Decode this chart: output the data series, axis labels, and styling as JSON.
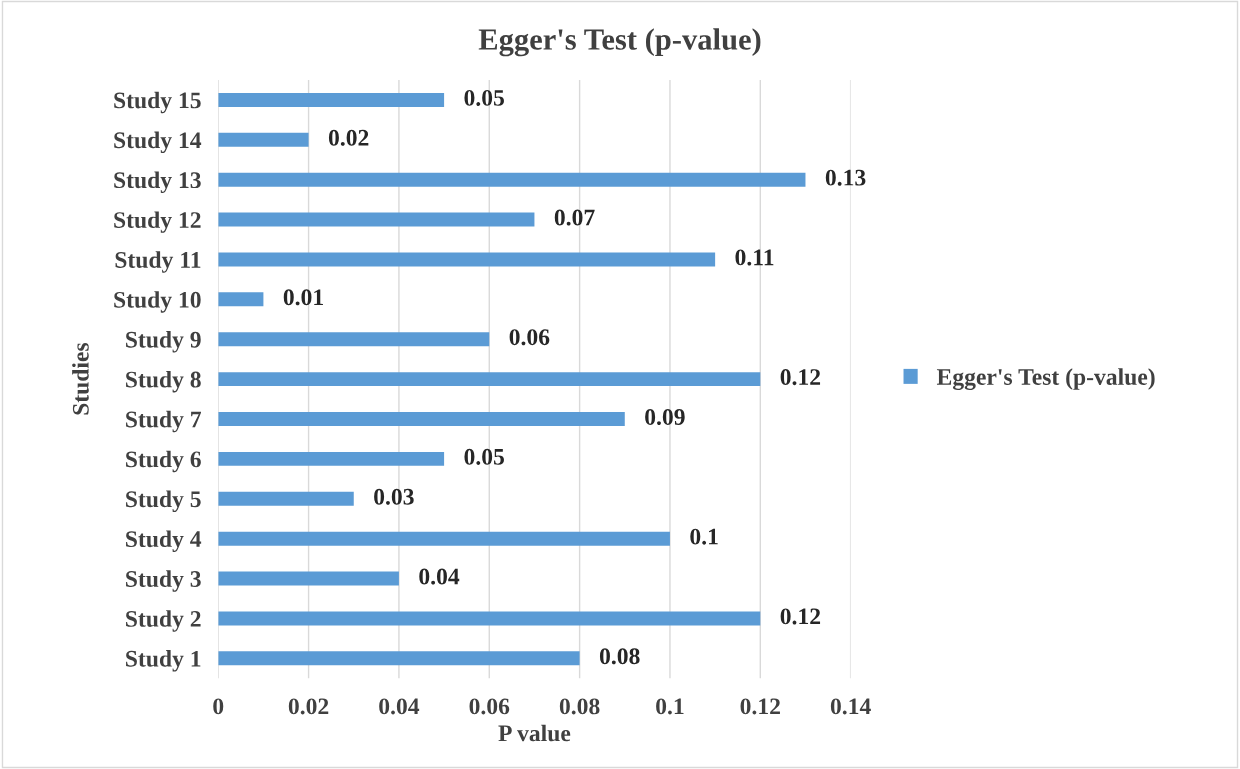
{
  "chart_data": {
    "type": "bar",
    "orientation": "horizontal",
    "title": "Egger's Test (p-value)",
    "xlabel": "P value",
    "ylabel": "Studies",
    "categories": [
      "Study 15",
      "Study 14",
      "Study 13",
      "Study 12",
      "Study 11",
      "Study 10",
      "Study 9",
      "Study 8",
      "Study 7",
      "Study 6",
      "Study 5",
      "Study 4",
      "Study 3",
      "Study 2",
      "Study 1"
    ],
    "series": [
      {
        "name": "Egger's Test (p-value)",
        "color": "#5b9bd5",
        "values": [
          0.05,
          0.02,
          0.13,
          0.07,
          0.11,
          0.01,
          0.06,
          0.12,
          0.09,
          0.05,
          0.03,
          0.1,
          0.04,
          0.12,
          0.08
        ]
      }
    ],
    "xlim": [
      0,
      0.14
    ],
    "xticks": [
      0,
      0.02,
      0.04,
      0.06,
      0.08,
      0.1,
      0.12,
      0.14
    ],
    "grid": "x",
    "legend": "right",
    "data_labels": true
  }
}
